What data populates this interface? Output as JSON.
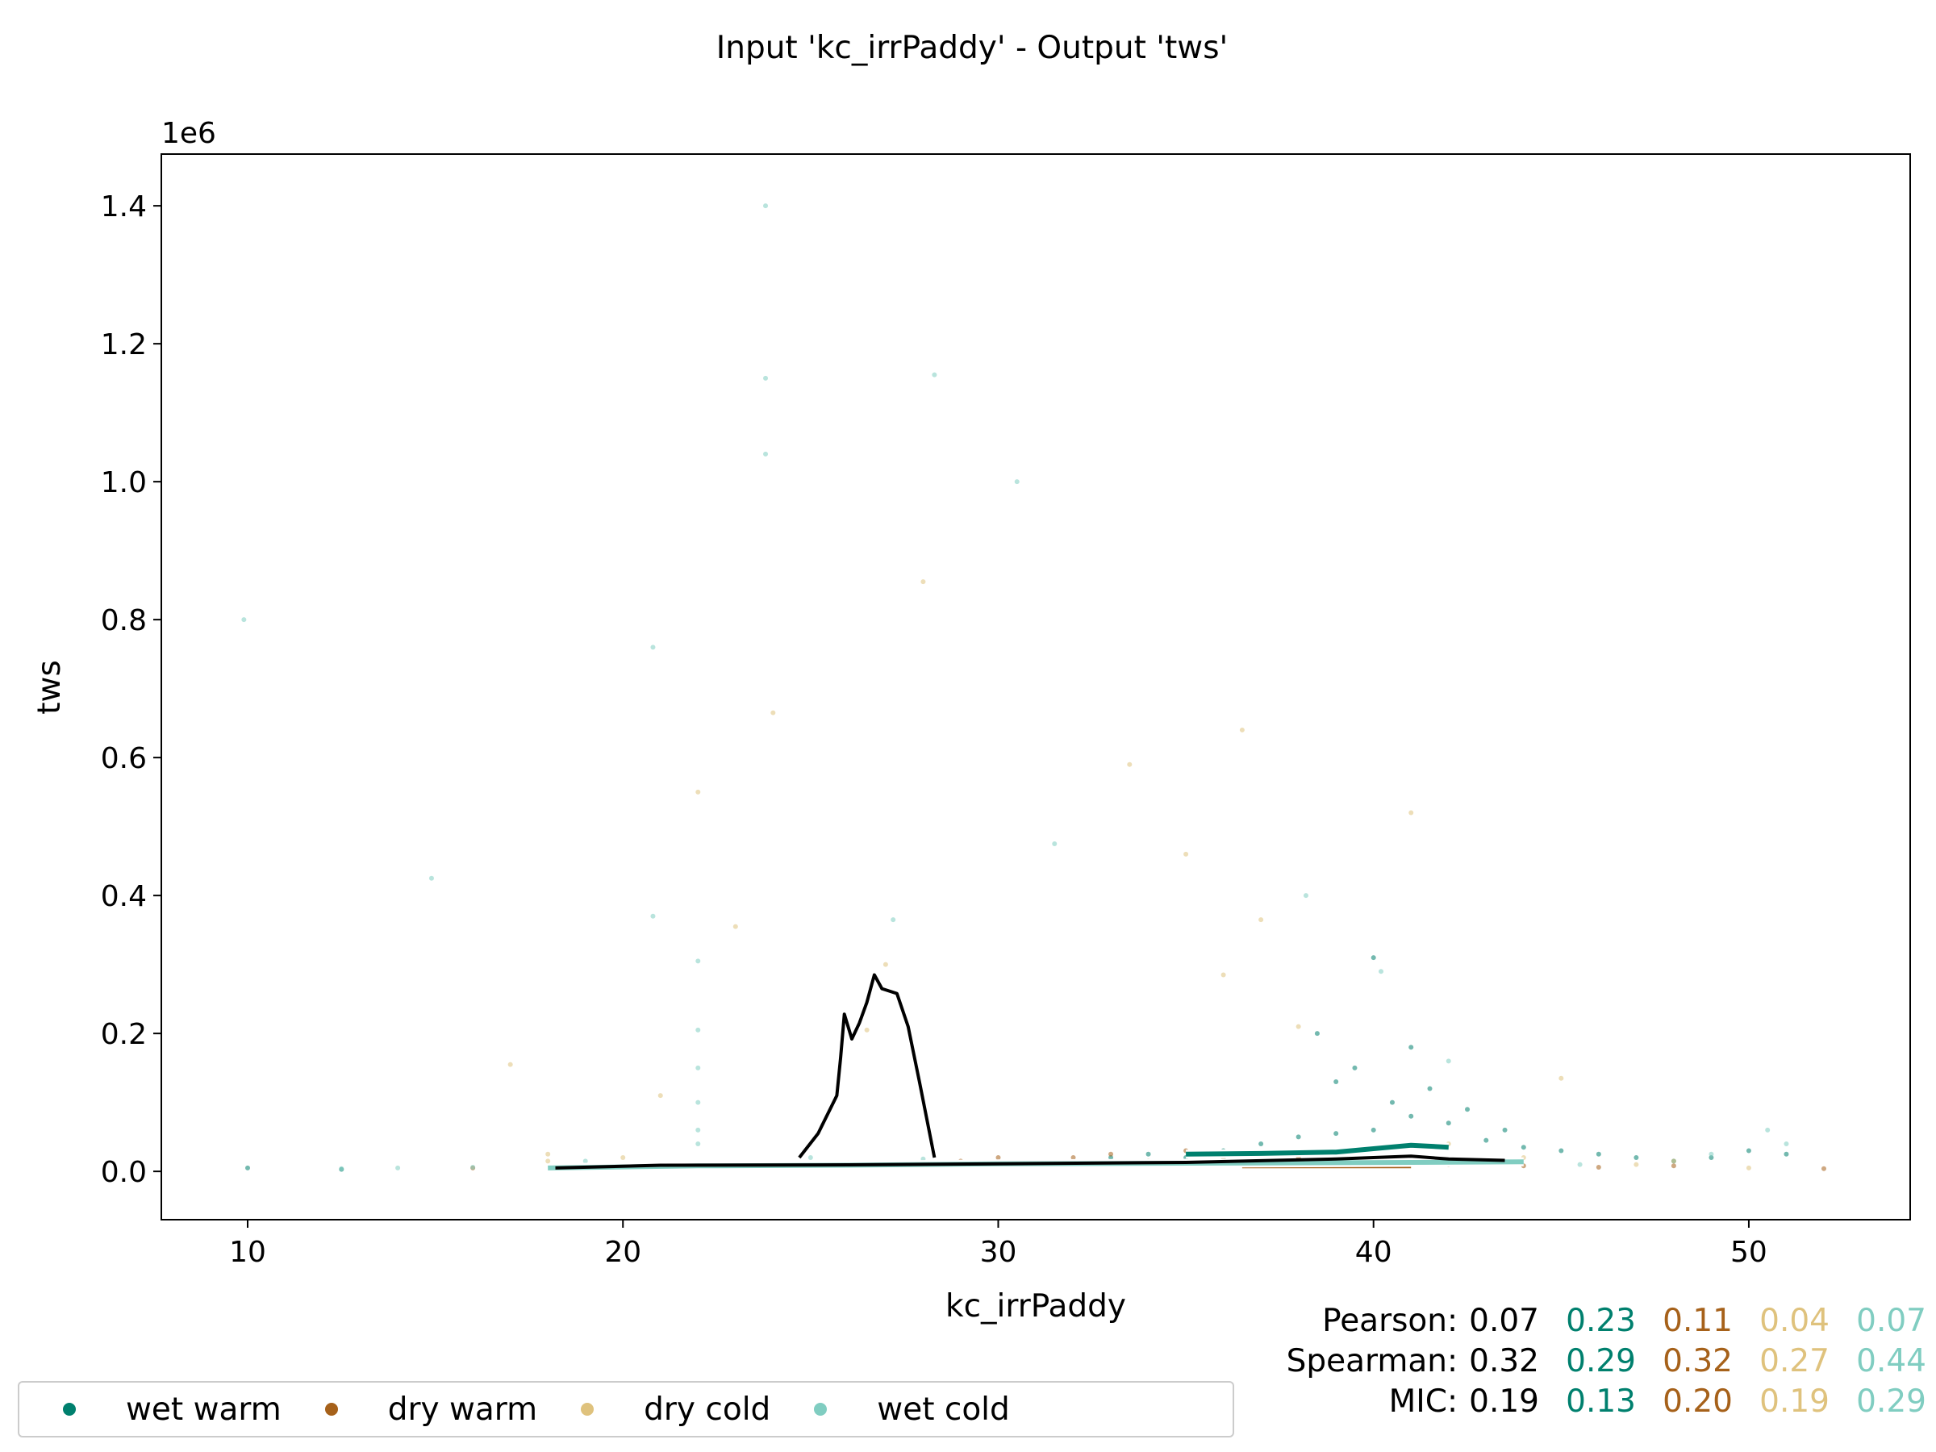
{
  "chart_data": {
    "type": "scatter",
    "title": "Input 'kc_irrPaddy' - Output 'tws'",
    "xlabel": "kc_irrPaddy",
    "ylabel": "tws",
    "y_offset_label": "1e6",
    "xlim": [
      7.7,
      54.3
    ],
    "ylim": [
      -70000,
      1475000
    ],
    "xticks": [
      10,
      20,
      30,
      40,
      50
    ],
    "xtick_labels": [
      "10",
      "20",
      "30",
      "40",
      "50"
    ],
    "yticks": [
      0,
      200000,
      400000,
      600000,
      800000,
      1000000,
      1200000,
      1400000
    ],
    "ytick_labels": [
      "0.0",
      "0.2",
      "0.4",
      "0.6",
      "0.8",
      "1.0",
      "1.2",
      "1.4"
    ],
    "grid": false,
    "legend_position": "bottom-left",
    "series": [
      {
        "name": "wet warm",
        "color": "#00806e",
        "scatter_points": [
          [
            40,
            60000
          ],
          [
            41,
            80000
          ],
          [
            39,
            55000
          ],
          [
            42,
            70000
          ],
          [
            38,
            50000
          ],
          [
            43,
            45000
          ],
          [
            40.5,
            100000
          ],
          [
            41.5,
            120000
          ],
          [
            37,
            40000
          ],
          [
            44,
            35000
          ],
          [
            45,
            30000
          ],
          [
            46,
            25000
          ],
          [
            36,
            30000
          ],
          [
            47,
            20000
          ],
          [
            48,
            15000
          ],
          [
            49,
            20000
          ],
          [
            50,
            30000
          ],
          [
            51,
            25000
          ],
          [
            35,
            20000
          ],
          [
            34,
            25000
          ],
          [
            33,
            20000
          ],
          [
            39.5,
            150000
          ],
          [
            41,
            180000
          ],
          [
            40,
            310000
          ],
          [
            38.5,
            200000
          ],
          [
            39,
            130000
          ],
          [
            42.5,
            90000
          ],
          [
            43.5,
            60000
          ],
          [
            12.5,
            3000
          ],
          [
            10,
            5000
          ]
        ],
        "trend_line": [
          [
            35,
            25000
          ],
          [
            37,
            26000
          ],
          [
            39,
            28000
          ],
          [
            41,
            38000
          ],
          [
            42,
            35000
          ]
        ]
      },
      {
        "name": "dry warm",
        "color": "#a6611a",
        "scatter_points": [
          [
            32,
            20000
          ],
          [
            34,
            15000
          ],
          [
            36,
            18000
          ],
          [
            38,
            20000
          ],
          [
            40,
            15000
          ],
          [
            42,
            10000
          ],
          [
            44,
            8000
          ],
          [
            46,
            6000
          ],
          [
            31,
            10000
          ],
          [
            33,
            25000
          ],
          [
            35,
            30000
          ],
          [
            39,
            30000
          ],
          [
            37,
            12000
          ],
          [
            48,
            8000
          ],
          [
            16,
            5000
          ],
          [
            19,
            8000
          ],
          [
            22,
            10000
          ],
          [
            26,
            12000
          ],
          [
            29,
            15000
          ],
          [
            30,
            20000
          ],
          [
            43,
            12000
          ],
          [
            52,
            4000
          ]
        ],
        "trend_line": [
          [
            36.5,
            8000
          ],
          [
            41,
            8000
          ]
        ]
      },
      {
        "name": "dry cold",
        "color": "#dfc27d",
        "scatter_points": [
          [
            24,
            665000
          ],
          [
            28,
            855000
          ],
          [
            33.5,
            590000
          ],
          [
            36.5,
            640000
          ],
          [
            41,
            520000
          ],
          [
            35,
            460000
          ],
          [
            37,
            365000
          ],
          [
            36,
            285000
          ],
          [
            18,
            25000
          ],
          [
            18,
            15000
          ],
          [
            20,
            20000
          ],
          [
            23,
            355000
          ],
          [
            27,
            300000
          ],
          [
            22,
            550000
          ],
          [
            45,
            135000
          ],
          [
            47,
            10000
          ],
          [
            48,
            15000
          ],
          [
            50,
            5000
          ],
          [
            44,
            20000
          ],
          [
            42,
            40000
          ],
          [
            38,
            210000
          ],
          [
            17,
            155000
          ],
          [
            21,
            110000
          ],
          [
            26.5,
            205000
          ]
        ],
        "trend_line": [
          [
            18.5,
            6000
          ],
          [
            20,
            6000
          ]
        ]
      },
      {
        "name": "wet cold",
        "color": "#80cdc1",
        "scatter_points": [
          [
            23.8,
            1400000
          ],
          [
            23.8,
            1150000
          ],
          [
            28.3,
            1155000
          ],
          [
            23.8,
            1040000
          ],
          [
            30.5,
            1000000
          ],
          [
            9.9,
            800000
          ],
          [
            20.8,
            760000
          ],
          [
            14.9,
            425000
          ],
          [
            20.8,
            370000
          ],
          [
            22,
            305000
          ],
          [
            22,
            205000
          ],
          [
            22,
            150000
          ],
          [
            22,
            100000
          ],
          [
            22,
            60000
          ],
          [
            22,
            40000
          ],
          [
            31.5,
            475000
          ],
          [
            38.2,
            400000
          ],
          [
            42,
            160000
          ],
          [
            40.2,
            290000
          ],
          [
            27.2,
            365000
          ],
          [
            45.5,
            10000
          ],
          [
            49,
            25000
          ],
          [
            50.5,
            60000
          ],
          [
            51,
            40000
          ],
          [
            19,
            15000
          ],
          [
            25,
            20000
          ],
          [
            28,
            18000
          ],
          [
            14,
            5000
          ],
          [
            16,
            6000
          ],
          [
            12.5,
            4000
          ]
        ],
        "trend_line": [
          [
            18,
            5000
          ],
          [
            22,
            8000
          ],
          [
            26,
            9000
          ],
          [
            30,
            11000
          ],
          [
            36,
            12000
          ],
          [
            41,
            13000
          ],
          [
            44,
            14000
          ]
        ]
      },
      {
        "name": "",
        "color": "#000000",
        "trend_line": [
          [
            24.7,
            20000
          ],
          [
            25.2,
            55000
          ],
          [
            25.7,
            110000
          ],
          [
            25.8,
            165000
          ],
          [
            25.9,
            228000
          ],
          [
            26.1,
            192000
          ],
          [
            26.3,
            215000
          ],
          [
            26.5,
            245000
          ],
          [
            26.7,
            285000
          ],
          [
            26.9,
            265000
          ],
          [
            27.3,
            258000
          ],
          [
            27.6,
            210000
          ],
          [
            27.9,
            130000
          ],
          [
            28.3,
            20000
          ]
        ]
      },
      {
        "name": "",
        "color": "#000000",
        "trend_line": [
          [
            18.2,
            5000
          ],
          [
            21,
            9000
          ],
          [
            26,
            9500
          ],
          [
            30,
            11000
          ],
          [
            35,
            13000
          ],
          [
            39,
            18000
          ],
          [
            41,
            22000
          ],
          [
            42,
            18000
          ],
          [
            43.5,
            16000
          ]
        ]
      }
    ],
    "stats": {
      "rows": [
        {
          "label": "Pearson:",
          "values": [
            "0.07",
            "0.23",
            "0.11",
            "0.04",
            "0.07"
          ]
        },
        {
          "label": "Spearman:",
          "values": [
            "0.32",
            "0.29",
            "0.32",
            "0.27",
            "0.44"
          ]
        },
        {
          "label": "MIC:",
          "values": [
            "0.19",
            "0.13",
            "0.20",
            "0.19",
            "0.29"
          ]
        }
      ],
      "colors": [
        "#000000",
        "#00806e",
        "#a6611a",
        "#dfc27d",
        "#80cdc1"
      ]
    }
  }
}
